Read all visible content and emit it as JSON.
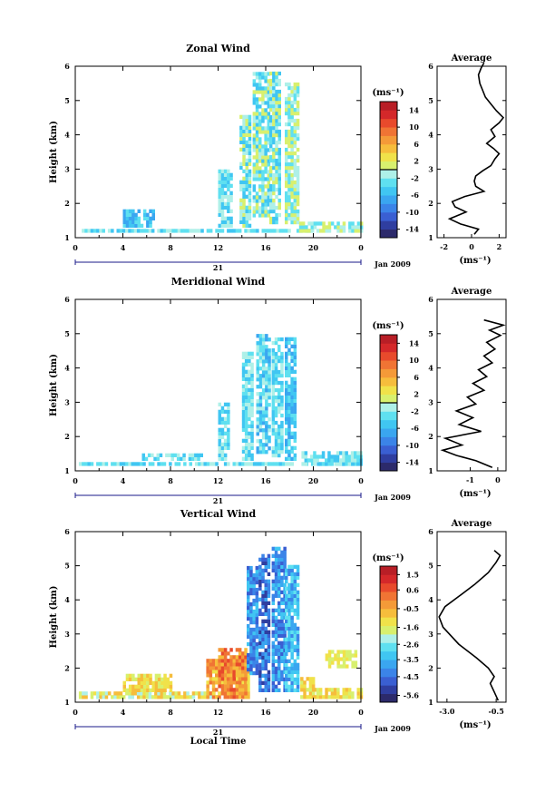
{
  "panels": [
    {
      "id": "zonal",
      "title": "Zonal Wind",
      "ylabel": "Height (km)",
      "yticks": [
        "1",
        "2",
        "3",
        "4",
        "5",
        "6"
      ],
      "xticks": [
        "0",
        "4",
        "8",
        "12",
        "16",
        "20",
        "0"
      ],
      "day_label": "21",
      "date_label": "Jan 2009",
      "unit_label": "(ms⁻¹)",
      "colorbar_ticks": [
        "14",
        "10",
        "6",
        "2",
        "-2",
        "-6",
        "-10",
        "-14"
      ],
      "colorbar_min": -16,
      "colorbar_max": 16,
      "colorbar_colors": [
        "#2c2a6b",
        "#2f3ea0",
        "#3a5fd2",
        "#3b84e8",
        "#3aa6f0",
        "#40c6f2",
        "#5fe0f0",
        "#aef0e8",
        "#d8f06e",
        "#f0e24a",
        "#f6bd3c",
        "#f49a38",
        "#f07434",
        "#e84a2c",
        "#d4282a",
        "#b81e26"
      ],
      "avg_title": "Average",
      "avg_xlabel": "(ms⁻¹)",
      "avg_xticks": [
        "-2",
        "0",
        "2"
      ],
      "avg_xlim": [
        -2.5,
        2.5
      ],
      "avg_profile": [
        [
          0.2,
          1.1
        ],
        [
          0.5,
          1.25
        ],
        [
          -0.8,
          1.4
        ],
        [
          -1.6,
          1.55
        ],
        [
          -0.4,
          1.75
        ],
        [
          -1.2,
          1.9
        ],
        [
          -1.4,
          2.05
        ],
        [
          -0.5,
          2.2
        ],
        [
          0.9,
          2.35
        ],
        [
          0.3,
          2.5
        ],
        [
          0.2,
          2.65
        ],
        [
          0.3,
          2.8
        ],
        [
          0.8,
          2.95
        ],
        [
          1.4,
          3.1
        ],
        [
          1.7,
          3.3
        ],
        [
          2.0,
          3.45
        ],
        [
          1.6,
          3.6
        ],
        [
          1.1,
          3.75
        ],
        [
          1.7,
          3.95
        ],
        [
          1.4,
          4.15
        ],
        [
          2.0,
          4.35
        ],
        [
          2.3,
          4.5
        ],
        [
          1.8,
          4.7
        ],
        [
          1.4,
          4.9
        ],
        [
          1.0,
          5.1
        ],
        [
          0.8,
          5.3
        ],
        [
          0.6,
          5.5
        ],
        [
          0.5,
          5.75
        ],
        [
          0.7,
          5.95
        ],
        [
          0.9,
          6.1
        ]
      ]
    },
    {
      "id": "meridional",
      "title": "Meridional Wind",
      "ylabel": "Height (km)",
      "yticks": [
        "1",
        "2",
        "3",
        "4",
        "5",
        "6"
      ],
      "xticks": [
        "0",
        "4",
        "8",
        "12",
        "16",
        "20",
        "0"
      ],
      "day_label": "21",
      "date_label": "Jan 2009",
      "unit_label": "(ms⁻¹)",
      "colorbar_ticks": [
        "14",
        "10",
        "6",
        "2",
        "-2",
        "-6",
        "-10",
        "-14"
      ],
      "colorbar_min": -16,
      "colorbar_max": 16,
      "colorbar_colors": [
        "#2c2a6b",
        "#2f3ea0",
        "#3a5fd2",
        "#3b84e8",
        "#3aa6f0",
        "#40c6f2",
        "#5fe0f0",
        "#aef0e8",
        "#d8f06e",
        "#f0e24a",
        "#f6bd3c",
        "#f49a38",
        "#f07434",
        "#e84a2c",
        "#d4282a",
        "#b81e26"
      ],
      "avg_title": "Average",
      "avg_xlabel": "(ms⁻¹)",
      "avg_xticks": [
        "-1",
        "0"
      ],
      "avg_xlim": [
        -2.2,
        0.3
      ],
      "avg_profile": [
        [
          -0.2,
          1.1
        ],
        [
          -0.8,
          1.3
        ],
        [
          -1.5,
          1.45
        ],
        [
          -2.0,
          1.6
        ],
        [
          -1.3,
          1.75
        ],
        [
          -1.9,
          1.95
        ],
        [
          -0.6,
          2.15
        ],
        [
          -1.4,
          2.35
        ],
        [
          -0.9,
          2.55
        ],
        [
          -1.5,
          2.75
        ],
        [
          -0.8,
          2.95
        ],
        [
          -1.1,
          3.15
        ],
        [
          -0.5,
          3.35
        ],
        [
          -0.9,
          3.55
        ],
        [
          -0.4,
          3.75
        ],
        [
          -0.7,
          3.95
        ],
        [
          -0.2,
          4.15
        ],
        [
          -0.5,
          4.35
        ],
        [
          -0.1,
          4.55
        ],
        [
          -0.4,
          4.75
        ],
        [
          0.1,
          4.95
        ],
        [
          -0.3,
          5.1
        ],
        [
          0.2,
          5.25
        ],
        [
          -0.5,
          5.4
        ]
      ]
    },
    {
      "id": "vertical",
      "title": "Vertical Wind",
      "ylabel": "Height (km)",
      "yticks": [
        "1",
        "2",
        "3",
        "4",
        "5",
        "6"
      ],
      "xticks": [
        "0",
        "4",
        "8",
        "12",
        "16",
        "20",
        "0"
      ],
      "day_label": "21",
      "date_label": "Jan 2009",
      "unit_label": "(ms⁻¹)",
      "xlabel": "Local Time",
      "colorbar_ticks": [
        "1.5",
        "0.6",
        "-0.5",
        "-1.6",
        "-2.6",
        "-3.5",
        "-4.5",
        "-5.6"
      ],
      "colorbar_min": -6.0,
      "colorbar_max": 2.0,
      "colorbar_colors": [
        "#2c2a6b",
        "#2f3ea0",
        "#3a5fd2",
        "#3b84e8",
        "#3aa6f0",
        "#40c6f2",
        "#5fe0f0",
        "#aef0e8",
        "#d8f06e",
        "#f0e24a",
        "#f6bd3c",
        "#f49a38",
        "#f07434",
        "#e84a2c",
        "#d4282a",
        "#b81e26"
      ],
      "avg_title": "Average",
      "avg_xlabel": "(ms⁻¹)",
      "avg_xticks": [
        "-3.0",
        "-0.5"
      ],
      "avg_xlim": [
        -3.5,
        0.0
      ],
      "avg_profile": [
        [
          -0.4,
          1.05
        ],
        [
          -0.6,
          1.3
        ],
        [
          -0.8,
          1.55
        ],
        [
          -0.6,
          1.75
        ],
        [
          -0.9,
          2.0
        ],
        [
          -1.5,
          2.3
        ],
        [
          -2.4,
          2.7
        ],
        [
          -3.2,
          3.2
        ],
        [
          -3.4,
          3.5
        ],
        [
          -3.1,
          3.8
        ],
        [
          -2.4,
          4.1
        ],
        [
          -1.6,
          4.45
        ],
        [
          -0.9,
          4.8
        ],
        [
          -0.5,
          5.1
        ],
        [
          -0.3,
          5.3
        ],
        [
          -0.6,
          5.45
        ]
      ]
    }
  ]
}
